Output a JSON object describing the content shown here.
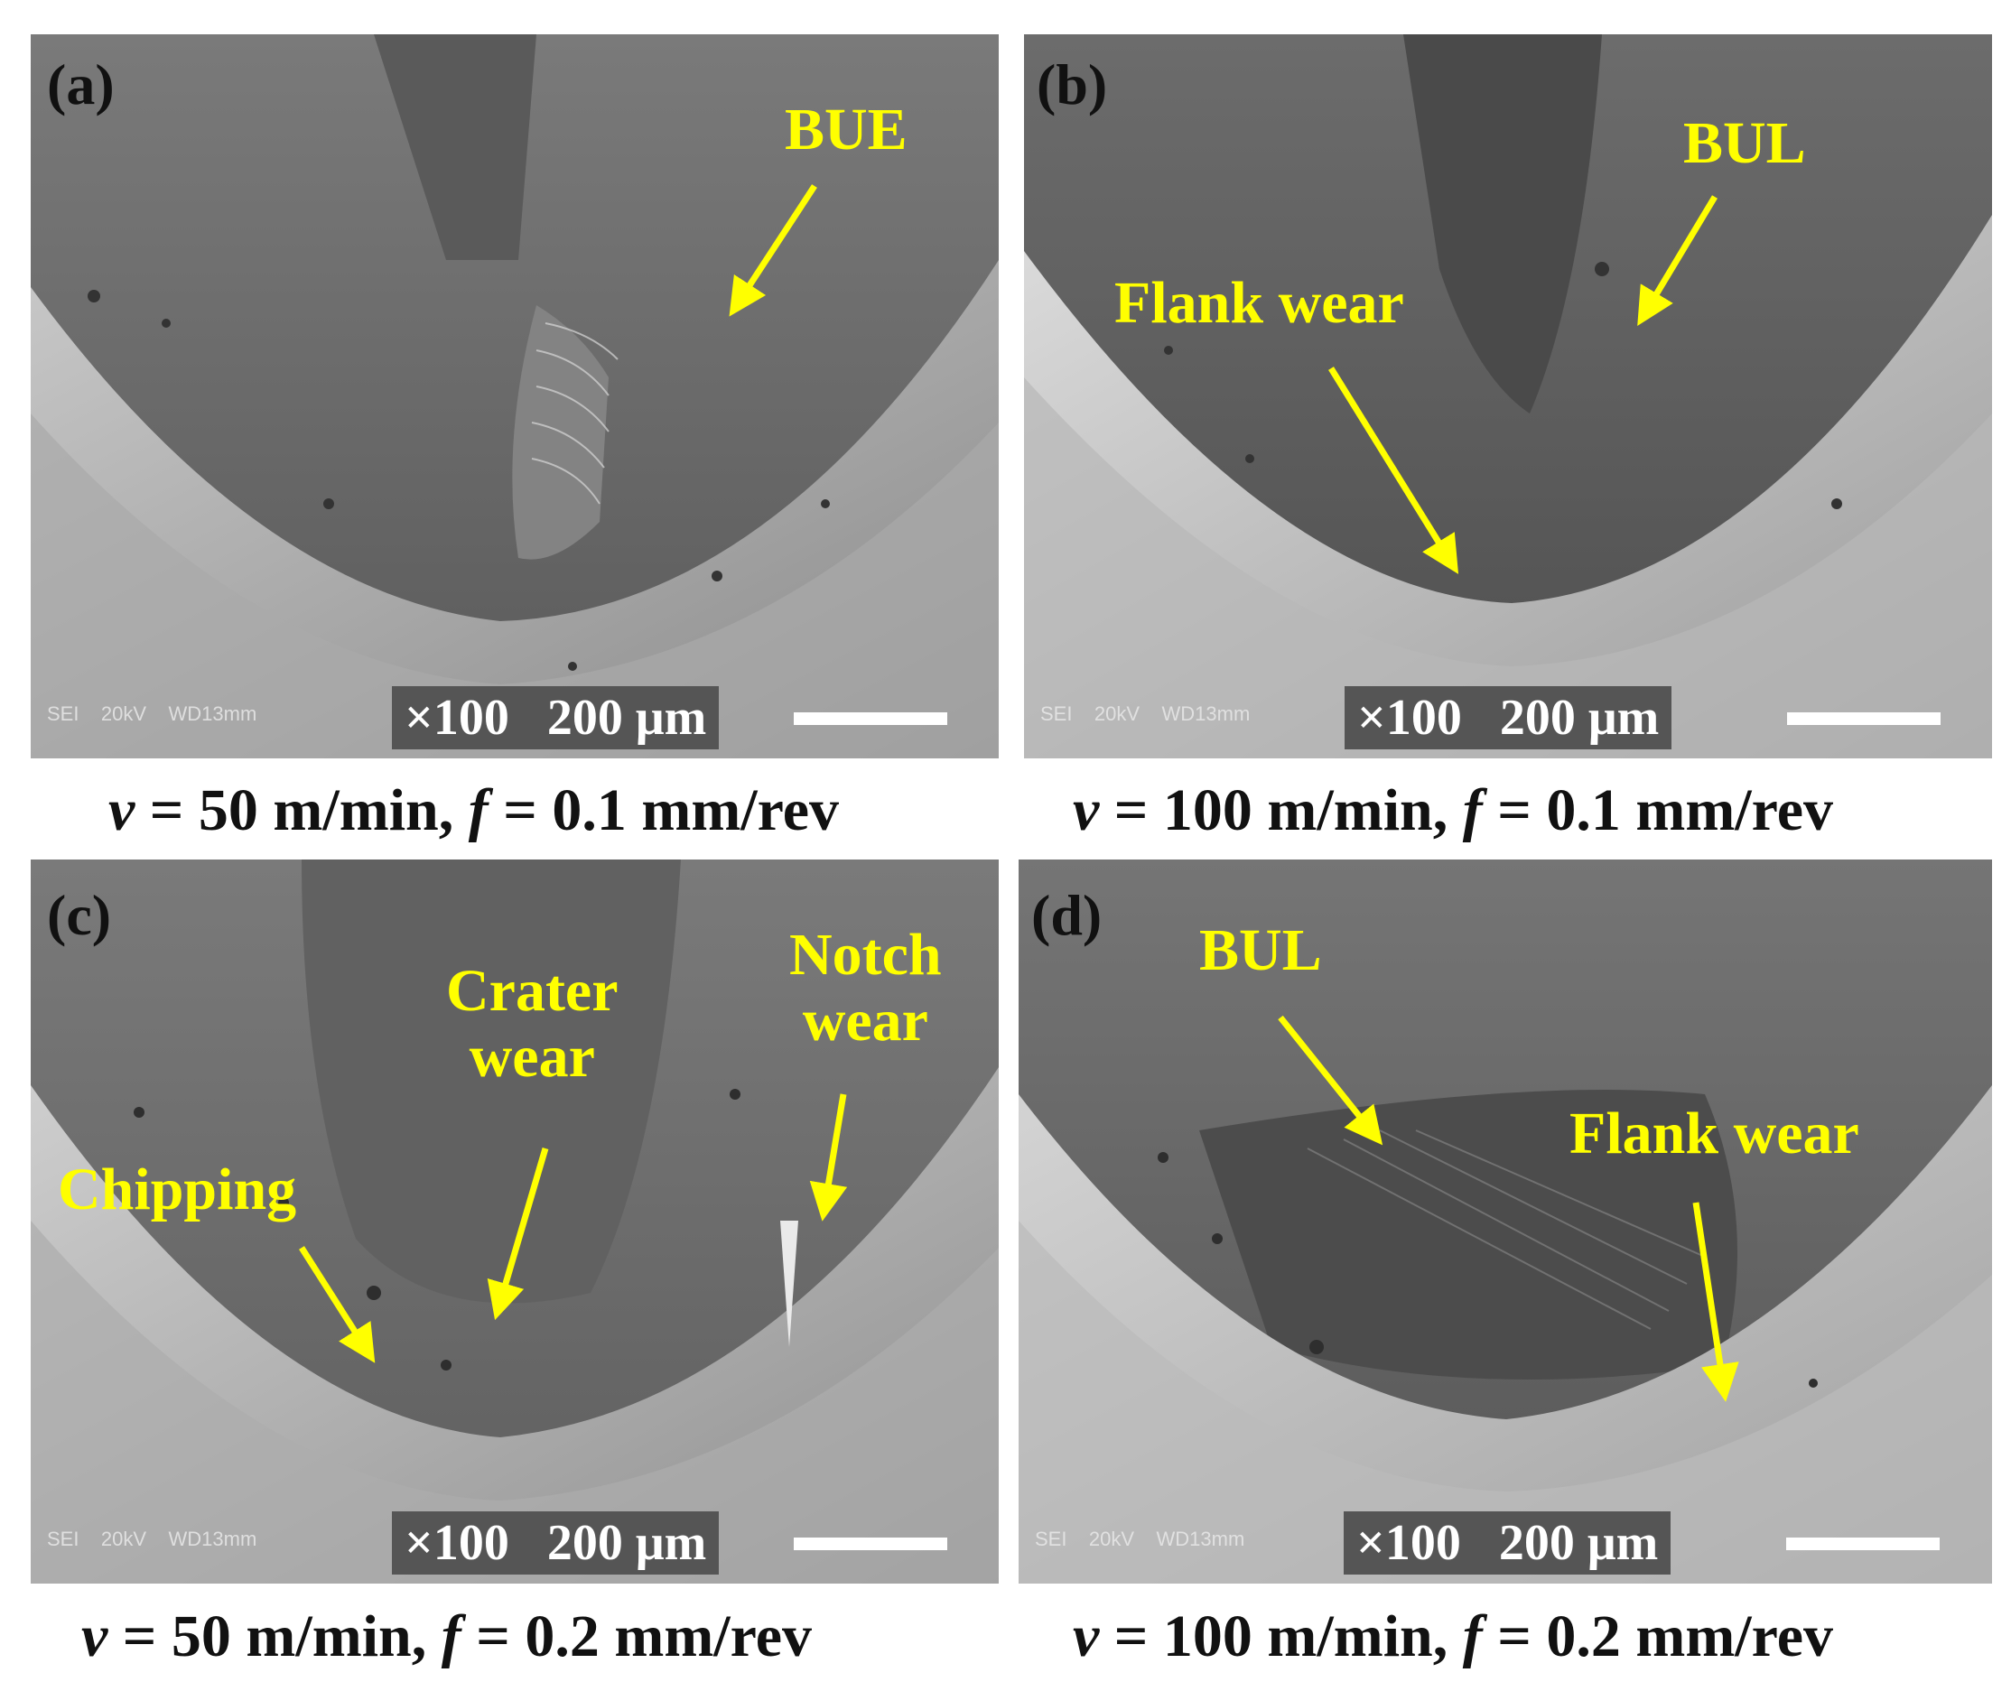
{
  "panels": [
    {
      "label": "(a)",
      "annotations": [
        "BUE"
      ],
      "meta": [
        "SEI",
        "20kV",
        "WD13mm"
      ],
      "magnification": "×100",
      "scale": "200 μm",
      "caption": {
        "v": "v",
        "v_text": " = 50 m/min, ",
        "f": "f",
        "f_text": " = 0.1 mm/rev"
      }
    },
    {
      "label": "(b)",
      "annotations": [
        "BUL",
        "Flank wear"
      ],
      "meta": [
        "SEI",
        "20kV",
        "WD13mm"
      ],
      "magnification": "×100",
      "scale": "200 μm",
      "caption": {
        "v": "v",
        "v_text": " = 100 m/min, ",
        "f": "f",
        "f_text": " = 0.1 mm/rev"
      }
    },
    {
      "label": "(c)",
      "annotations": [
        "Crater",
        "wear",
        "Notch",
        "wear",
        "Chipping"
      ],
      "meta": [
        "SEI",
        "20kV",
        "WD13mm"
      ],
      "magnification": "×100",
      "scale": "200 μm",
      "caption": {
        "v": "v",
        "v_text": " = 50 m/min, ",
        "f": "f",
        "f_text": " = 0.2 mm/rev"
      }
    },
    {
      "label": "(d)",
      "annotations": [
        "BUL",
        "Flank wear"
      ],
      "meta": [
        "SEI",
        "20kV",
        "WD13mm"
      ],
      "magnification": "×100",
      "scale": "200 μm",
      "caption": {
        "v": "v",
        "v_text": " = 100 m/min, ",
        "f": "f",
        "f_text": " = 0.2 mm/rev"
      }
    }
  ],
  "colors": {
    "annotation": "#ffff00",
    "label": "#111111"
  }
}
